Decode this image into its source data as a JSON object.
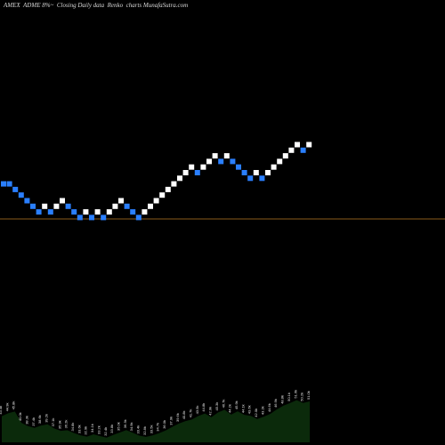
{
  "header": {
    "title": "AMEX  ADME 8%~  Closing Daily data  Renko  charts MunafaSutra.com"
  },
  "colors": {
    "background": "#000000",
    "up_brick": "#ffffff",
    "down_brick": "#2a7fff",
    "ref_line": "#8a5a1a",
    "volume_fill": "#0b2a0b"
  },
  "chart_data": {
    "type": "renko",
    "title": "AMEX  ADME 8%~  Closing Daily data  Renko  charts MunafaSutra.com",
    "xlabel": "",
    "ylabel": "",
    "bricks": [
      {
        "dir": "down",
        "level": 8
      },
      {
        "dir": "down",
        "level": 8
      },
      {
        "dir": "down",
        "level": 7
      },
      {
        "dir": "down",
        "level": 6
      },
      {
        "dir": "down",
        "level": 5
      },
      {
        "dir": "down",
        "level": 4
      },
      {
        "dir": "down",
        "level": 3
      },
      {
        "dir": "up",
        "level": 4
      },
      {
        "dir": "down",
        "level": 3
      },
      {
        "dir": "up",
        "level": 4
      },
      {
        "dir": "up",
        "level": 5
      },
      {
        "dir": "down",
        "level": 4
      },
      {
        "dir": "down",
        "level": 3
      },
      {
        "dir": "down",
        "level": 2
      },
      {
        "dir": "up",
        "level": 3
      },
      {
        "dir": "down",
        "level": 2
      },
      {
        "dir": "up",
        "level": 3
      },
      {
        "dir": "down",
        "level": 2
      },
      {
        "dir": "up",
        "level": 3
      },
      {
        "dir": "up",
        "level": 4
      },
      {
        "dir": "up",
        "level": 5
      },
      {
        "dir": "down",
        "level": 4
      },
      {
        "dir": "down",
        "level": 3
      },
      {
        "dir": "down",
        "level": 2
      },
      {
        "dir": "up",
        "level": 3
      },
      {
        "dir": "up",
        "level": 4
      },
      {
        "dir": "up",
        "level": 5
      },
      {
        "dir": "up",
        "level": 6
      },
      {
        "dir": "up",
        "level": 7
      },
      {
        "dir": "up",
        "level": 8
      },
      {
        "dir": "up",
        "level": 9
      },
      {
        "dir": "up",
        "level": 10
      },
      {
        "dir": "up",
        "level": 11
      },
      {
        "dir": "down",
        "level": 10
      },
      {
        "dir": "up",
        "level": 11
      },
      {
        "dir": "up",
        "level": 12
      },
      {
        "dir": "up",
        "level": 13
      },
      {
        "dir": "down",
        "level": 12
      },
      {
        "dir": "up",
        "level": 13
      },
      {
        "dir": "down",
        "level": 12
      },
      {
        "dir": "down",
        "level": 11
      },
      {
        "dir": "down",
        "level": 10
      },
      {
        "dir": "down",
        "level": 9
      },
      {
        "dir": "up",
        "level": 10
      },
      {
        "dir": "down",
        "level": 9
      },
      {
        "dir": "up",
        "level": 10
      },
      {
        "dir": "up",
        "level": 11
      },
      {
        "dir": "up",
        "level": 12
      },
      {
        "dir": "up",
        "level": 13
      },
      {
        "dir": "up",
        "level": 14
      },
      {
        "dir": "up",
        "level": 15
      },
      {
        "dir": "down",
        "level": 14
      },
      {
        "dir": "up",
        "level": 15
      }
    ],
    "volume_labels": [
      "43.4k",
      "44.9k",
      "45.8k",
      "40.0k",
      "38.3k",
      "37.4k",
      "38.6k",
      "39.2k",
      "37.1k",
      "35.9k",
      "36.2k",
      "34.8k",
      "33.6k",
      "32.9k",
      "34.1k",
      "33.2k",
      "32.4k",
      "33.8k",
      "35.0k",
      "36.3k",
      "34.9k",
      "33.4k",
      "32.8k",
      "33.5k",
      "34.7k",
      "36.0k",
      "37.9k",
      "39.6k",
      "40.8k",
      "41.7k",
      "43.5k",
      "44.8k",
      "42.9k",
      "45.3k",
      "46.7k",
      "44.2k",
      "45.9k",
      "44.1k",
      "43.6k",
      "42.0k",
      "43.2k",
      "44.6k",
      "46.9k",
      "48.8k",
      "50.1k",
      "51.6k",
      "50.2k",
      "51.0k"
    ],
    "volume_values": [
      43.4,
      44.9,
      45.8,
      40.0,
      38.3,
      37.4,
      38.6,
      39.2,
      37.1,
      35.9,
      36.2,
      34.8,
      33.6,
      32.9,
      34.1,
      33.2,
      32.4,
      33.8,
      35.0,
      36.3,
      34.9,
      33.4,
      32.8,
      33.5,
      34.7,
      36.0,
      37.9,
      39.6,
      40.8,
      41.7,
      43.5,
      44.8,
      42.9,
      45.3,
      46.7,
      44.2,
      45.9,
      44.1,
      43.6,
      42.0,
      43.2,
      44.6,
      46.9,
      48.8,
      50.1,
      51.6,
      50.2,
      51.0
    ]
  }
}
